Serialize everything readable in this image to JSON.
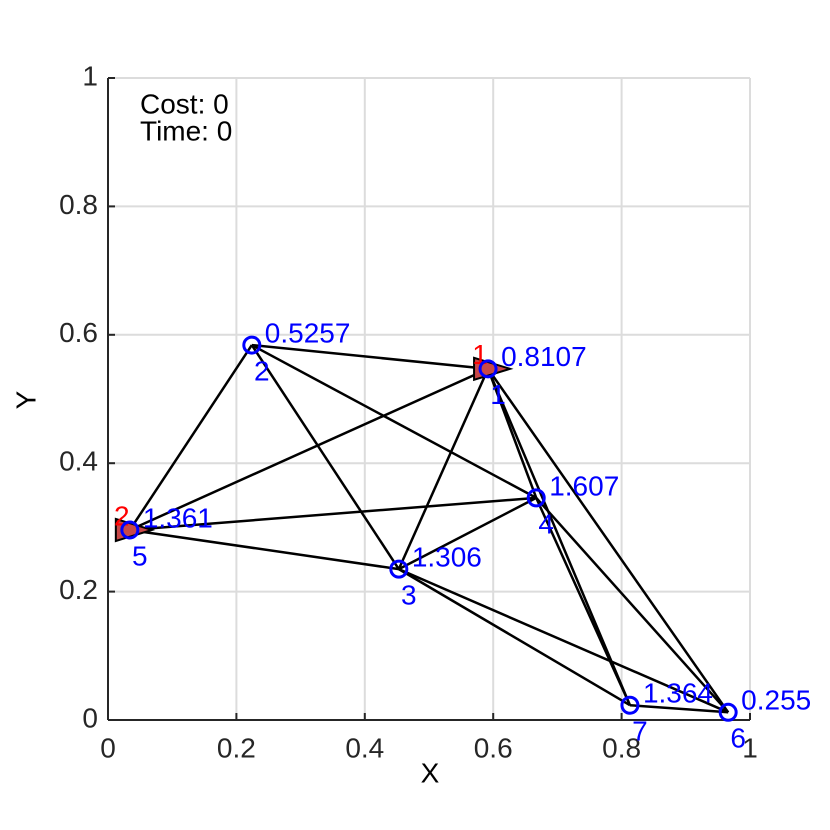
{
  "chart_data": {
    "type": "scatter",
    "xlabel": "X",
    "ylabel": "Y",
    "annotations": [
      "Cost: 0",
      "Time: 0"
    ],
    "xlim": [
      0,
      1
    ],
    "ylim": [
      0,
      1
    ],
    "xticks": [
      0,
      0.2,
      0.4,
      0.6,
      0.8,
      1
    ],
    "yticks": [
      0,
      0.2,
      0.4,
      0.6,
      0.8,
      1
    ],
    "grid": true,
    "color": "#0000ff",
    "node_ids": [
      "1",
      "2",
      "3",
      "4",
      "5",
      "6",
      "7"
    ],
    "x": [
      0.592,
      0.224,
      0.453,
      0.667,
      0.034,
      0.966,
      0.813
    ],
    "y": [
      0.547,
      0.584,
      0.235,
      0.346,
      0.296,
      0.012,
      0.023
    ],
    "node_values": [
      "0.8107",
      "0.5257",
      "1.306",
      "1.607",
      "1.361",
      "0.255",
      "1.364"
    ],
    "edges": [
      [
        2,
        5
      ],
      [
        2,
        3
      ],
      [
        2,
        4
      ],
      [
        2,
        1
      ],
      [
        5,
        1
      ],
      [
        5,
        4
      ],
      [
        5,
        3
      ],
      [
        3,
        1
      ],
      [
        3,
        4
      ],
      [
        3,
        7
      ],
      [
        3,
        6
      ],
      [
        1,
        4
      ],
      [
        1,
        7
      ],
      [
        1,
        6
      ],
      [
        4,
        7
      ],
      [
        4,
        6
      ],
      [
        7,
        6
      ]
    ],
    "edge_color": "#000000",
    "depots": {
      "labels": [
        "1",
        "2"
      ],
      "x": [
        0.592,
        0.034
      ],
      "y": [
        0.547,
        0.296
      ],
      "color": "#ff0000",
      "fill": "#c84848"
    }
  }
}
